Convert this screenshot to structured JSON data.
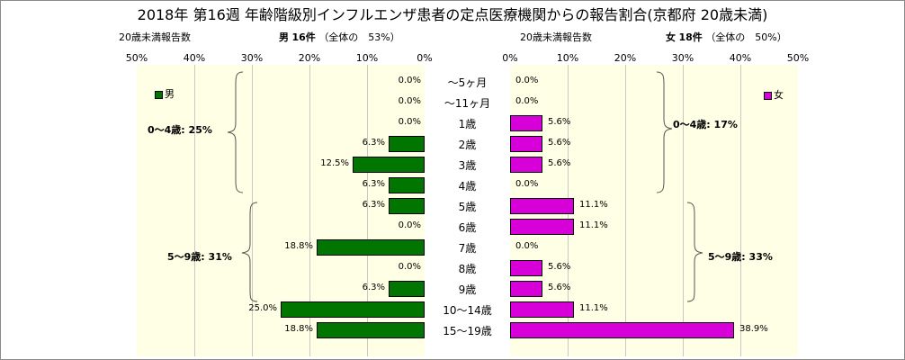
{
  "title": "2018年 第16週 年齢階級別インフルエンザ患者の定点医療機関からの報告割合(京都府 20歳未満)",
  "left_header": {
    "axis_title": "20歳未満報告数",
    "sex": "男",
    "count": "16件",
    "share": "（全体の　53%）"
  },
  "right_header": {
    "axis_title": "20歳未満報告数",
    "sex": "女",
    "count": "18件",
    "share": "（全体の　50%）"
  },
  "chart_data": {
    "type": "bar",
    "orientation": "horizontal-population-pyramid",
    "categories": [
      "～5ヶ月",
      "～11ヶ月",
      "1歳",
      "2歳",
      "3歳",
      "4歳",
      "5歳",
      "6歳",
      "7歳",
      "8歳",
      "9歳",
      "10～14歳",
      "15～19歳"
    ],
    "series": [
      {
        "name": "男",
        "values": [
          0.0,
          0.0,
          0.0,
          6.3,
          12.5,
          6.3,
          6.3,
          0.0,
          18.8,
          0.0,
          6.3,
          25.0,
          18.8
        ],
        "labels": [
          "0.0%",
          "0.0%",
          "0.0%",
          "6.3%",
          "12.5%",
          "6.3%",
          "6.3%",
          "0.0%",
          "18.8%",
          "0.0%",
          "6.3%",
          "25.0%",
          "18.8%"
        ],
        "color": "#007500"
      },
      {
        "name": "女",
        "values": [
          0.0,
          0.0,
          5.6,
          5.6,
          5.6,
          0.0,
          11.1,
          11.1,
          0.0,
          5.6,
          5.6,
          11.1,
          38.9
        ],
        "labels": [
          "0.0%",
          "0.0%",
          "5.6%",
          "5.6%",
          "5.6%",
          "0.0%",
          "11.1%",
          "11.1%",
          "0.0%",
          "5.6%",
          "5.6%",
          "11.1%",
          "38.9%"
        ],
        "color": "#d800d8"
      }
    ],
    "xlim": [
      0,
      50
    ],
    "left_ticks": [
      "50%",
      "40%",
      "30%",
      "20%",
      "10%",
      "0%"
    ],
    "right_ticks": [
      "0%",
      "10%",
      "20%",
      "30%",
      "40%",
      "50%"
    ],
    "annotations": {
      "male_0_4": "0～4歳: 25%",
      "male_5_9": "5～9歳: 31%",
      "female_0_4": "0～4歳: 17%",
      "female_5_9": "5～9歳: 33%"
    },
    "grid": true,
    "legend": {
      "male": "top-left of left panel",
      "female": "top-right of right panel"
    }
  }
}
